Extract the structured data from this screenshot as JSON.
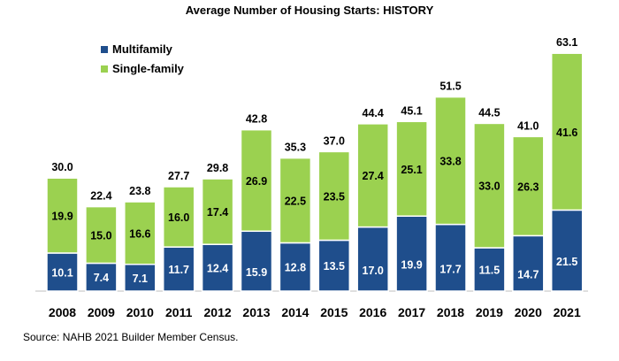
{
  "source": "Source: NAHB 2021 Builder Member Census.",
  "colors": {
    "multifamily": "#1f4e8c",
    "single_family": "#9bd150"
  },
  "chart_data": {
    "type": "bar",
    "stacked": true,
    "title": "Average Number of Housing Starts: HISTORY",
    "categories": [
      "2008",
      "2009",
      "2010",
      "2011",
      "2012",
      "2013",
      "2014",
      "2015",
      "2016",
      "2017",
      "2018",
      "2019",
      "2020",
      "2021"
    ],
    "series": [
      {
        "name": "Multifamily",
        "values": [
          10.1,
          7.4,
          7.1,
          11.7,
          12.4,
          15.9,
          12.8,
          13.5,
          17.0,
          19.9,
          17.7,
          11.5,
          14.7,
          21.5
        ]
      },
      {
        "name": "Single-family",
        "values": [
          19.9,
          15.0,
          16.6,
          16.0,
          17.4,
          26.9,
          22.5,
          23.5,
          27.4,
          25.1,
          33.8,
          33.0,
          26.3,
          41.6
        ]
      }
    ],
    "totals": [
      30.0,
      22.4,
      23.8,
      27.7,
      29.8,
      42.8,
      35.3,
      37.0,
      44.4,
      45.1,
      51.5,
      44.5,
      41.0,
      63.1
    ],
    "legend_position": "top-left",
    "grid": false
  }
}
